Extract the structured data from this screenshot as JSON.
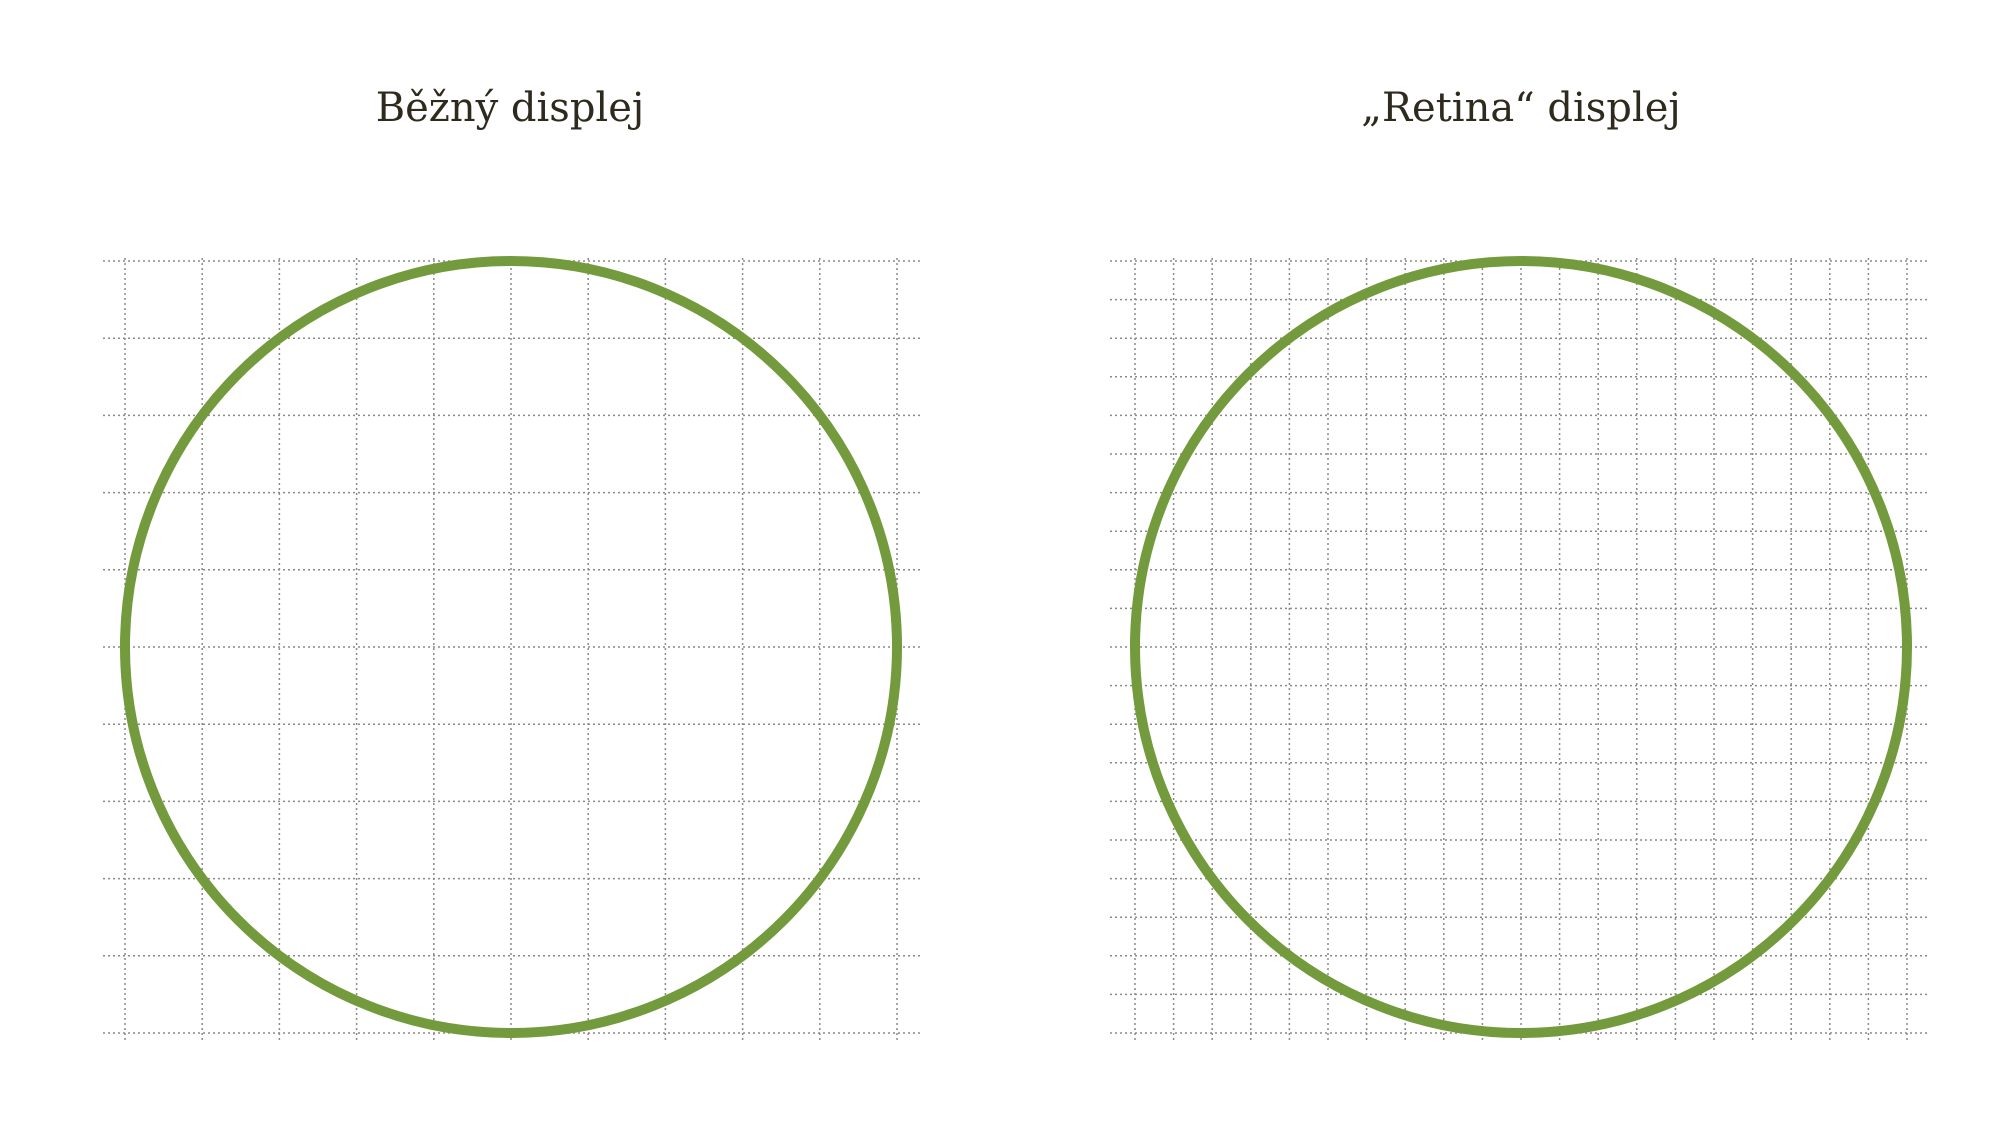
{
  "panels": {
    "standard": {
      "title": "Běžný displej",
      "grid_cells_per_diameter": 10
    },
    "retina": {
      "title": "„Retina“ displej",
      "grid_cells_per_diameter": 20
    }
  },
  "colors": {
    "circle": "#739a3c",
    "grid": "#8a8a8a",
    "title": "#2f2a1e",
    "background": "#ffffff"
  }
}
